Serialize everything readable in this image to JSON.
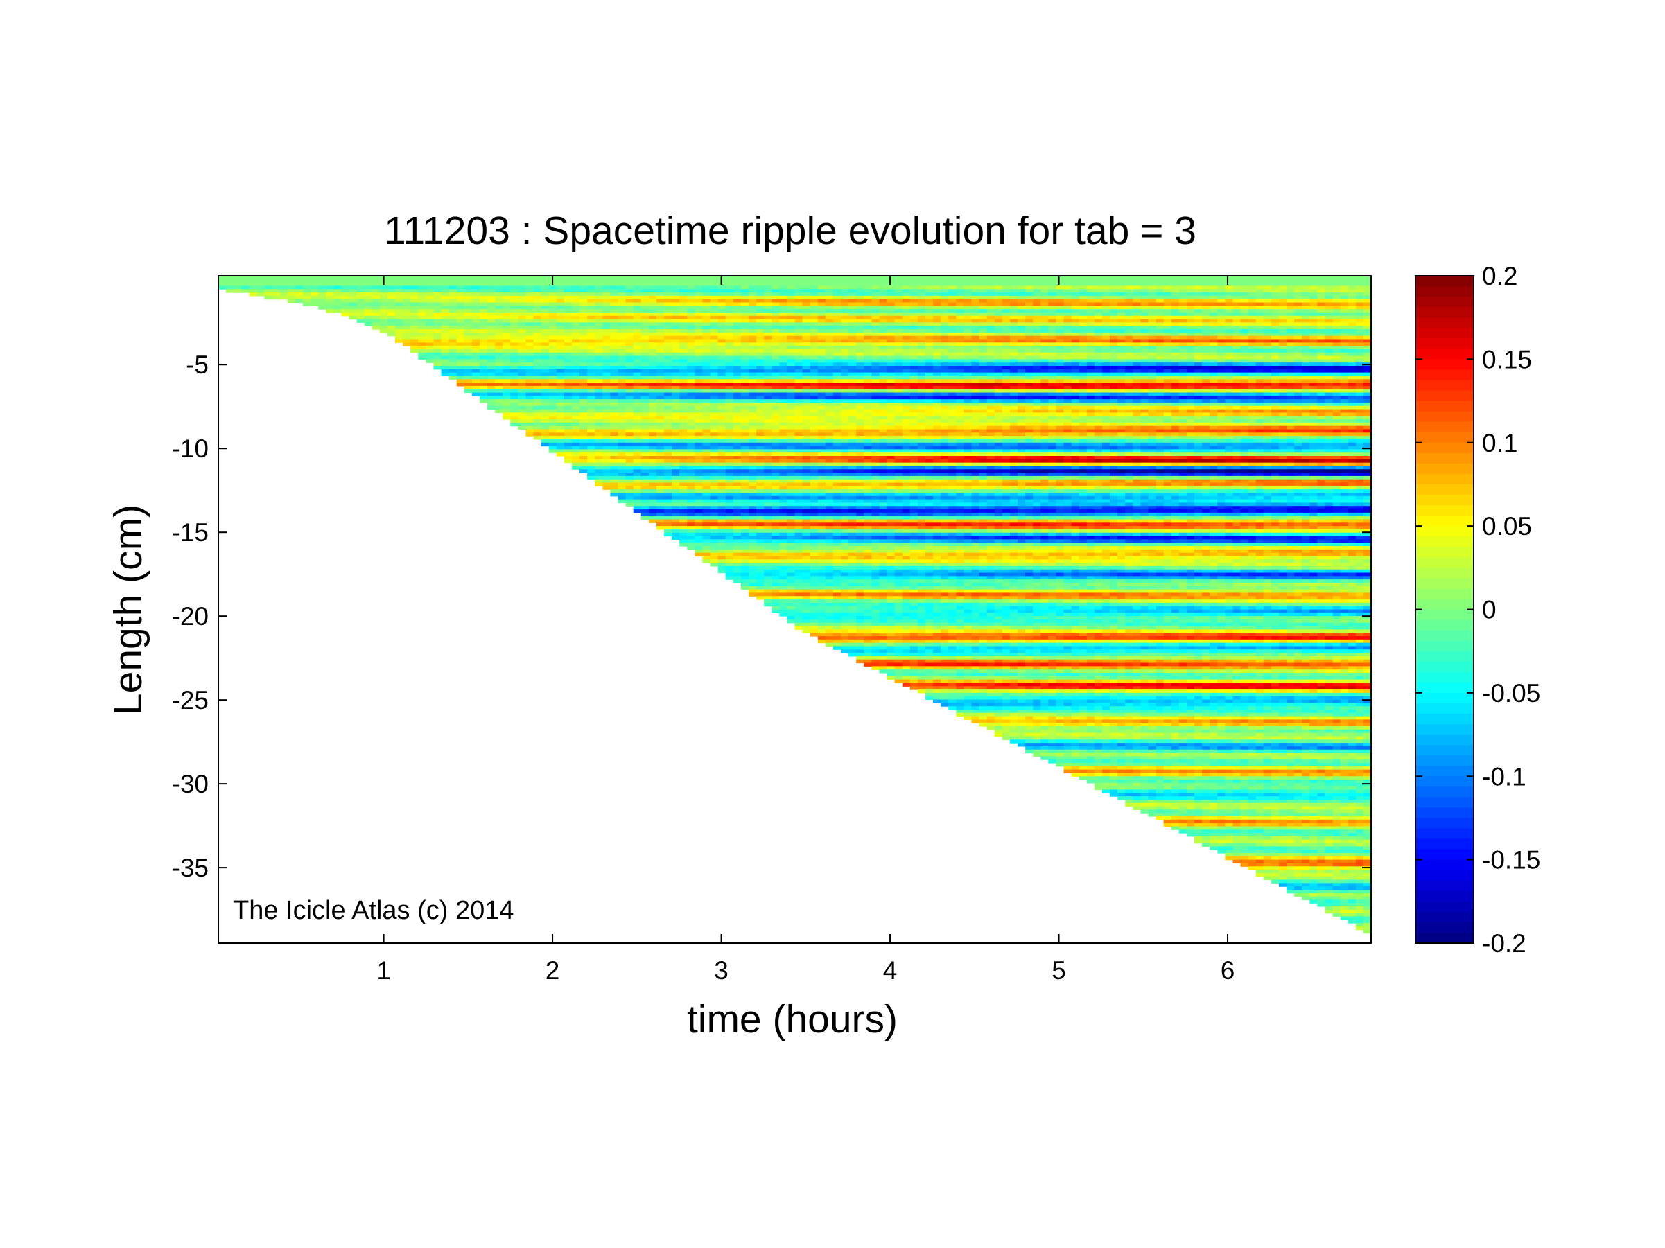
{
  "chart_data": {
    "type": "heatmap",
    "title": "111203 : Spacetime ripple evolution for tab = 3",
    "xlabel": "time (hours)",
    "ylabel": "Length (cm)",
    "xlim": [
      0.02,
      6.85
    ],
    "ylim": [
      -39.5,
      0.3
    ],
    "x_ticks": [
      1,
      2,
      3,
      4,
      5,
      6
    ],
    "y_ticks": [
      -5,
      -10,
      -15,
      -20,
      -25,
      -30,
      -35
    ],
    "colorbar": {
      "colormap": "jet",
      "clim": [
        -0.2,
        0.2
      ],
      "ticks": [
        "0.2",
        "0.15",
        "0.1",
        "0.05",
        "0",
        "-0.05",
        "-0.1",
        "-0.15",
        "-0.2"
      ],
      "tick_values": [
        0.2,
        0.15,
        0.1,
        0.05,
        0,
        -0.05,
        -0.1,
        -0.15,
        -0.2
      ]
    },
    "grid": false,
    "growth_front": {
      "x": [
        0.02,
        0.6,
        1.0,
        3.5,
        5.0,
        6.85
      ],
      "y": [
        -0.5,
        -1.5,
        -3.0,
        -21.0,
        -29.0,
        -39.0
      ]
    },
    "ripples": [
      {
        "y": -1.3,
        "amp": 0.07,
        "tmax": 5.0
      },
      {
        "y": -2.3,
        "amp": 0.05,
        "tmax": 3.0
      },
      {
        "y": -3.6,
        "amp": 0.09,
        "tmax": 1.5
      },
      {
        "y": -5.3,
        "amp": -0.16,
        "tmax": 6.5
      },
      {
        "y": -6.2,
        "amp": 0.17,
        "tmax": 6.3
      },
      {
        "y": -6.9,
        "amp": -0.12,
        "tmax": 6.0
      },
      {
        "y": -7.9,
        "amp": 0.08,
        "tmax": 6.0
      },
      {
        "y": -9.0,
        "amp": 0.13,
        "tmax": 6.6
      },
      {
        "y": -9.8,
        "amp": -0.11,
        "tmax": 6.6
      },
      {
        "y": -10.7,
        "amp": 0.15,
        "tmax": 6.6
      },
      {
        "y": -11.4,
        "amp": -0.18,
        "tmax": 6.0
      },
      {
        "y": -12.1,
        "amp": 0.12,
        "tmax": 6.5
      },
      {
        "y": -12.8,
        "amp": -0.1,
        "tmax": 6.5
      },
      {
        "y": -13.7,
        "amp": -0.17,
        "tmax": 5.0
      },
      {
        "y": -14.5,
        "amp": 0.13,
        "tmax": 6.6
      },
      {
        "y": -15.4,
        "amp": -0.12,
        "tmax": 6.6
      },
      {
        "y": -16.3,
        "amp": 0.1,
        "tmax": 6.6
      },
      {
        "y": -17.6,
        "amp": -0.11,
        "tmax": 6.5
      },
      {
        "y": -18.7,
        "amp": 0.09,
        "tmax": 6.5
      },
      {
        "y": -19.8,
        "amp": -0.08,
        "tmax": 6.5
      },
      {
        "y": -21.3,
        "amp": 0.14,
        "tmax": 4.5
      },
      {
        "y": -21.9,
        "amp": -0.1,
        "tmax": 6.5
      },
      {
        "y": -22.8,
        "amp": 0.12,
        "tmax": 6.3
      },
      {
        "y": -24.2,
        "amp": 0.14,
        "tmax": 6.6
      },
      {
        "y": -25.1,
        "amp": -0.1,
        "tmax": 6.6
      },
      {
        "y": -26.4,
        "amp": 0.08,
        "tmax": 6.6
      },
      {
        "y": -27.8,
        "amp": -0.07,
        "tmax": 6.6
      },
      {
        "y": -29.3,
        "amp": 0.07,
        "tmax": 6.6
      },
      {
        "y": -30.5,
        "amp": -0.06,
        "tmax": 6.6
      },
      {
        "y": -32.2,
        "amp": 0.08,
        "tmax": 6.6
      },
      {
        "y": -34.8,
        "amp": 0.12,
        "tmax": 6.2
      },
      {
        "y": -36.2,
        "amp": -0.06,
        "tmax": 6.6
      }
    ],
    "annotation": "The Icicle Atlas (c) 2014"
  }
}
